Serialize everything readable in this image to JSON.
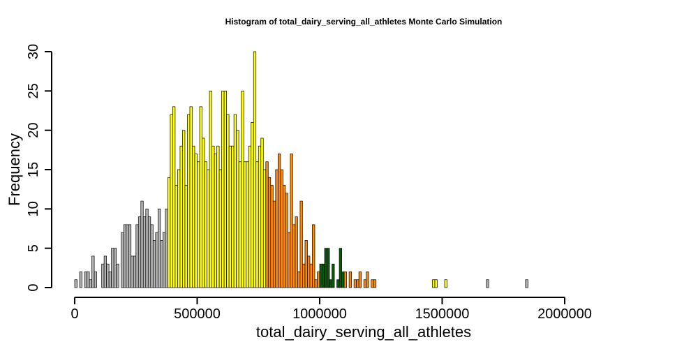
{
  "chart_data": {
    "type": "bar",
    "title": "Histogram of  total_dairy_serving_all_athletes  Monte Carlo Simulation",
    "xlabel": "total_dairy_serving_all_athletes",
    "ylabel": "Frequency",
    "xlim": [
      0,
      2350000
    ],
    "ylim": [
      0,
      30
    ],
    "x_ticks": [
      0,
      500000,
      1000000,
      1500000,
      2000000
    ],
    "x_tick_labels": [
      "0",
      "500000",
      "1000000",
      "1500000",
      "2000000"
    ],
    "y_ticks": [
      0,
      5,
      10,
      15,
      20,
      25,
      30
    ],
    "y_tick_labels": [
      "0",
      "5",
      "10",
      "15",
      "20",
      "25",
      "30"
    ],
    "bin_start": 0,
    "bin_width": 10000,
    "counts": [
      1,
      0,
      2,
      0,
      2,
      2,
      1,
      4,
      2,
      0,
      0,
      3,
      4,
      3,
      2,
      5,
      5,
      3,
      0,
      7,
      8,
      8,
      8,
      4,
      4,
      8,
      9,
      11,
      9,
      10,
      9,
      8,
      6,
      7,
      10,
      6,
      7,
      10,
      14,
      22,
      23,
      13,
      15,
      18,
      20,
      13,
      22,
      23,
      18,
      17,
      16,
      23,
      19,
      16,
      15,
      25,
      18,
      17,
      18,
      15,
      25,
      25,
      22,
      18,
      18,
      22,
      20,
      16,
      25,
      16,
      16,
      18,
      21,
      30,
      16,
      18,
      19,
      15,
      16,
      14,
      13,
      11,
      15,
      17,
      15,
      13,
      12,
      7,
      17,
      8,
      9,
      2,
      11,
      3,
      6,
      4,
      3,
      8,
      1,
      2,
      3,
      3,
      5,
      5,
      1,
      3,
      0,
      1,
      5,
      2,
      2,
      0,
      2,
      0,
      1,
      1,
      2,
      0,
      1,
      2,
      0,
      1,
      1,
      0,
      0,
      0,
      0,
      0,
      0,
      0,
      0,
      0,
      0,
      0,
      0,
      0,
      0,
      0,
      0,
      0,
      0,
      0,
      0,
      0,
      0,
      0,
      1,
      1,
      0,
      0,
      0,
      1,
      0,
      0,
      0,
      0,
      0,
      0,
      0,
      0,
      0,
      0,
      0,
      0,
      0,
      0,
      0,
      0,
      1,
      0,
      0,
      0,
      0,
      0,
      0,
      0,
      0,
      0,
      0,
      0,
      0,
      0,
      0,
      0,
      1
    ],
    "color_bands": [
      {
        "from": 0,
        "to": 380000,
        "color": "#b3b3b3"
      },
      {
        "from": 380000,
        "to": 780000,
        "color": "#ffff00"
      },
      {
        "from": 780000,
        "to": 1000000,
        "color": "#ff8c00"
      },
      {
        "from": 1000000,
        "to": 1100000,
        "color": "#0b5a0b"
      },
      {
        "from": 1100000,
        "to": 1300000,
        "color": "#ff8c00"
      },
      {
        "from": 1300000,
        "to": 1660000,
        "color": "#ffff00"
      },
      {
        "from": 1660000,
        "to": 2350000,
        "color": "#b3b3b3"
      }
    ]
  }
}
